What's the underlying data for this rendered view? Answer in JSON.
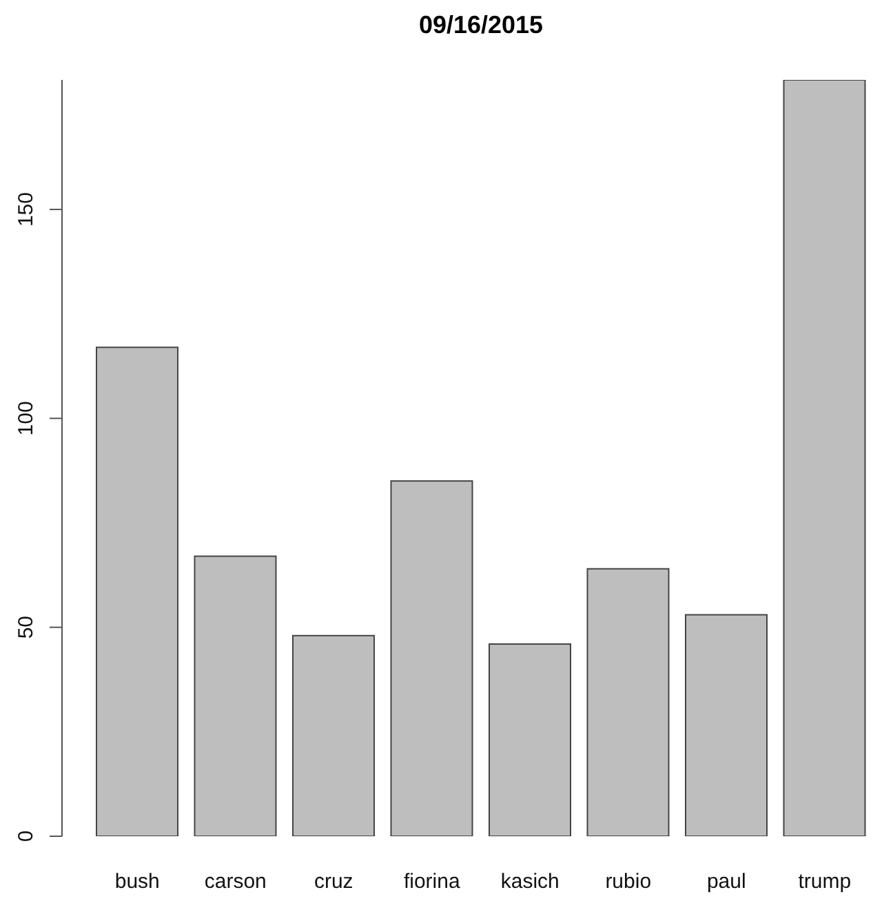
{
  "chart_data": {
    "type": "bar",
    "title": "09/16/2015",
    "categories": [
      "bush",
      "carson",
      "cruz",
      "fiorina",
      "kasich",
      "rubio",
      "paul",
      "trump"
    ],
    "values": [
      117,
      67,
      48,
      85,
      46,
      64,
      53,
      181
    ],
    "color": "#bebebe",
    "ylim": [
      0,
      181
    ],
    "yticks": [
      0,
      50,
      100,
      150
    ]
  }
}
